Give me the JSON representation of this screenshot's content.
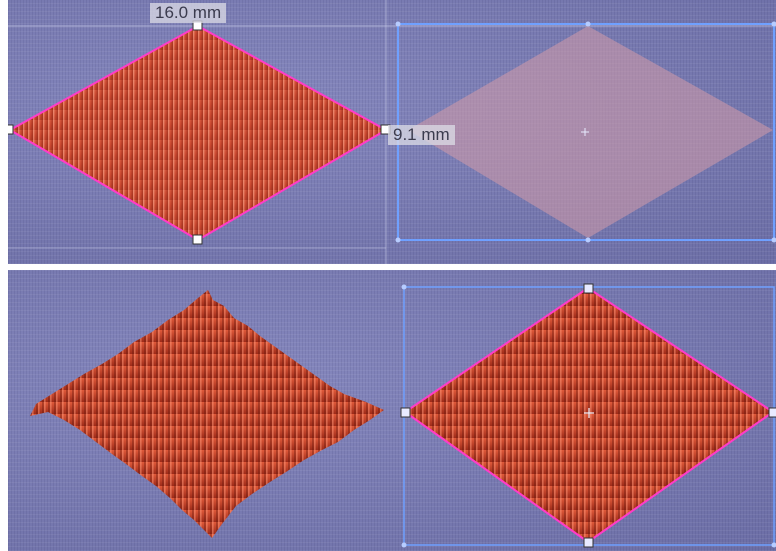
{
  "top_panel": {
    "width_label": "16.0 mm",
    "height_label": "9.1 mm"
  },
  "colors": {
    "fabric": "#7d7fb6",
    "stitch_red": "#c8452c",
    "outline_magenta": "#ff3cc8",
    "selection_blue": "#6fa0ff",
    "ghost_pink": "#d49aa8"
  }
}
